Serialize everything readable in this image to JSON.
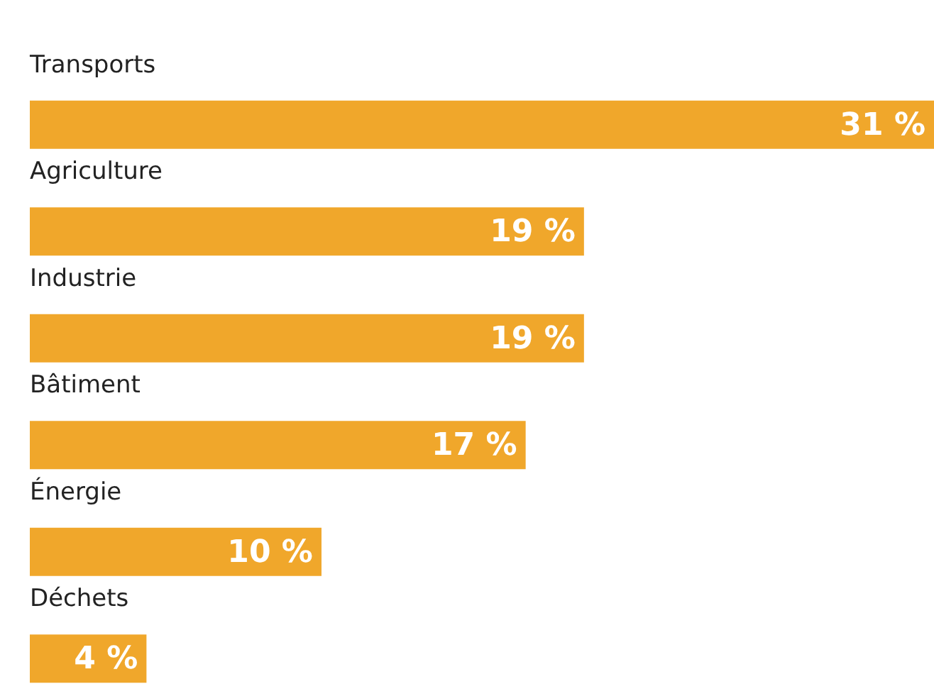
{
  "chart_data": {
    "type": "bar",
    "orientation": "horizontal",
    "categories": [
      "Transports",
      "Agriculture",
      "Industrie",
      "Bâtiment",
      "Énergie",
      "Déchets"
    ],
    "values": [
      31,
      19,
      19,
      17,
      10,
      4
    ],
    "value_labels": [
      "31 %",
      "19 %",
      "19 %",
      "17 %",
      "10 %",
      "4 %"
    ],
    "color": "#f0a72b",
    "grid": false
  }
}
